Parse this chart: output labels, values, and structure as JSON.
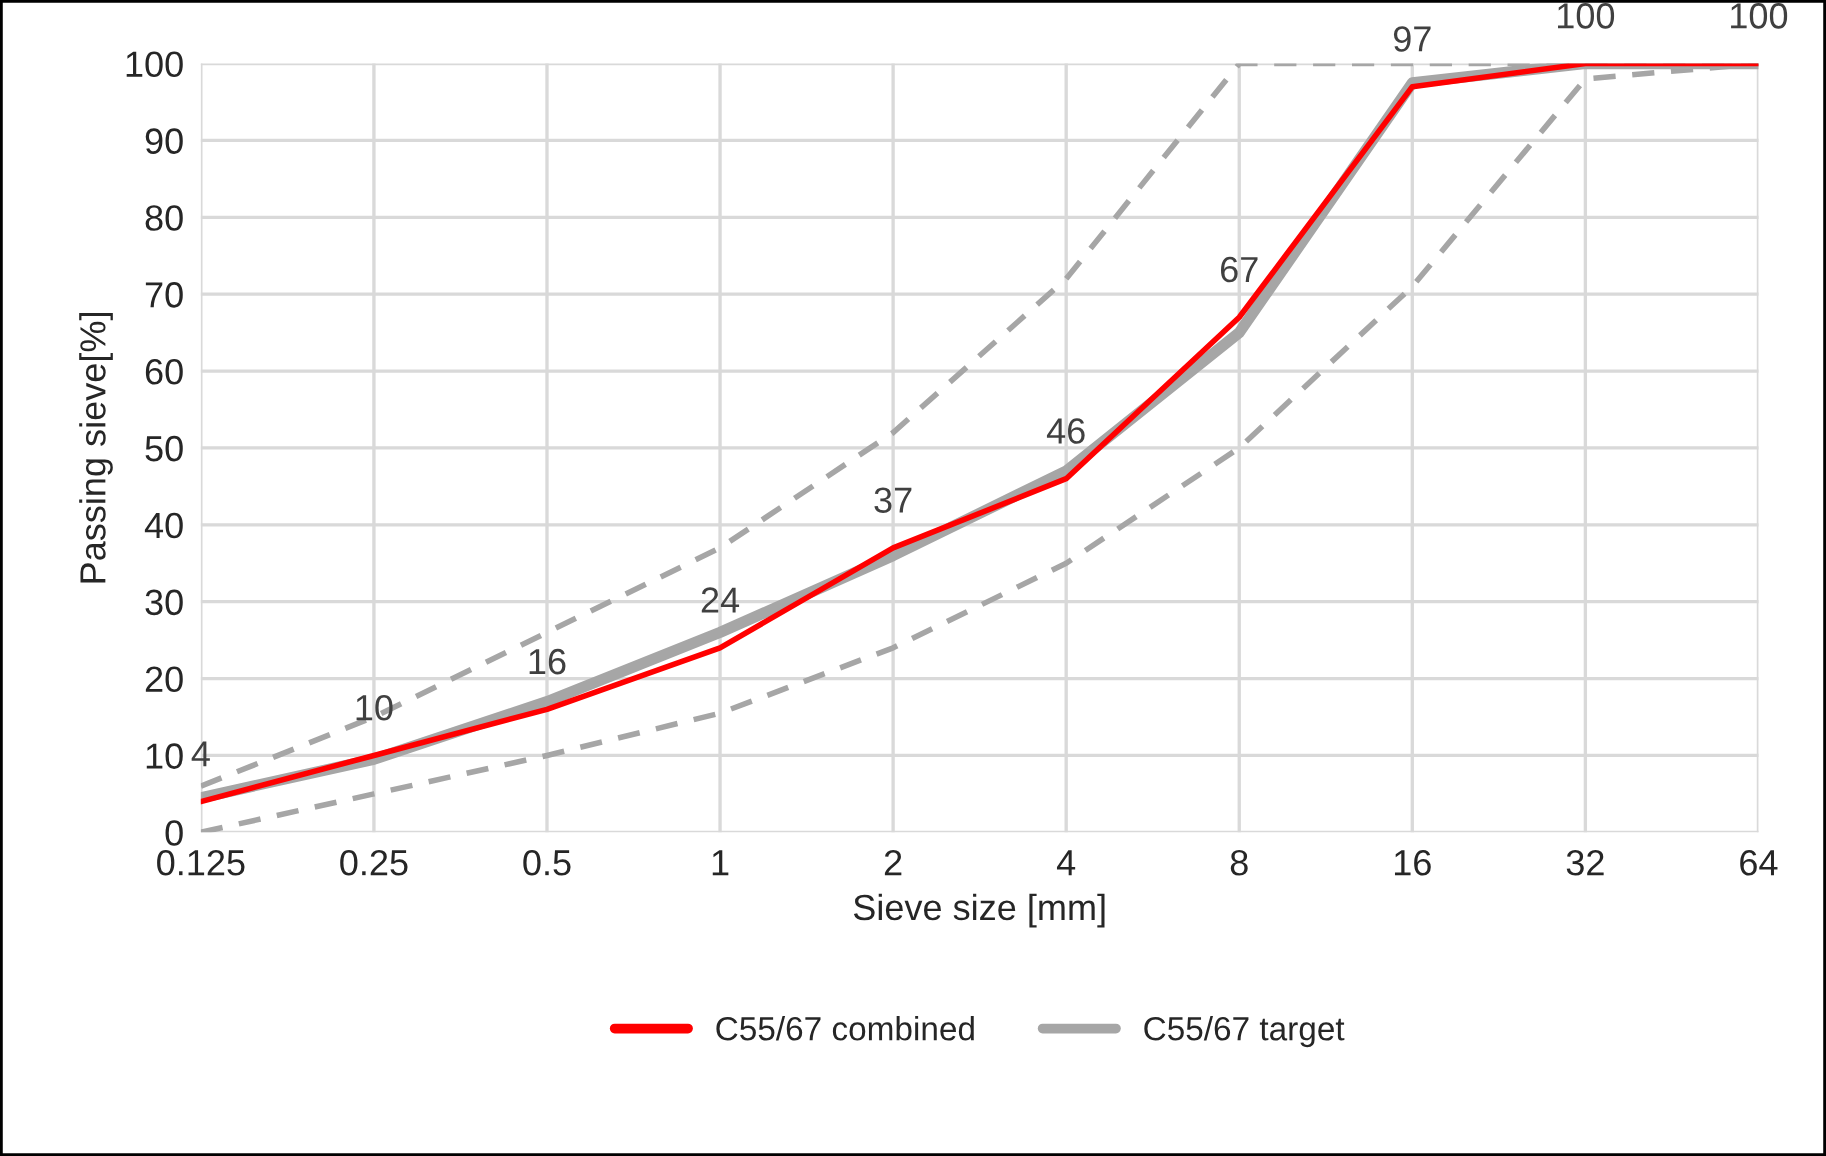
{
  "chart_data": {
    "type": "line",
    "xlabel": "Sieve size [mm]",
    "ylabel": "Passing sieve[%]",
    "categories": [
      "0.125",
      "0.25",
      "0.5",
      "1",
      "2",
      "4",
      "8",
      "16",
      "32",
      "64"
    ],
    "series": [
      {
        "name": "C55/67 combined",
        "color": "#ff0000",
        "values": [
          4,
          10,
          16,
          24,
          37,
          46,
          67,
          97,
          100,
          100
        ],
        "value_labels": [
          "4",
          "10",
          "16",
          "24",
          "37",
          "46",
          "67",
          "97",
          "100",
          "100"
        ]
      },
      {
        "name": "C55/67 target",
        "color": "#a6a6a6",
        "values": [
          4.5,
          9.5,
          17,
          26,
          36,
          47,
          65,
          97.5,
          100,
          100
        ]
      },
      {
        "color": "#a6a6a6",
        "line_style": "dashed",
        "values": [
          6,
          15,
          26,
          37,
          52,
          72,
          100,
          100,
          100,
          100
        ]
      },
      {
        "color": "#a6a6a6",
        "line_style": "dashed",
        "values": [
          0,
          5,
          10,
          15.5,
          24,
          35,
          50,
          71,
          98,
          100
        ]
      }
    ],
    "ylim": [
      0,
      100
    ],
    "yticks": [
      0,
      10,
      20,
      30,
      40,
      50,
      60,
      70,
      80,
      90,
      100
    ],
    "grid": true,
    "legend": "bottom"
  }
}
